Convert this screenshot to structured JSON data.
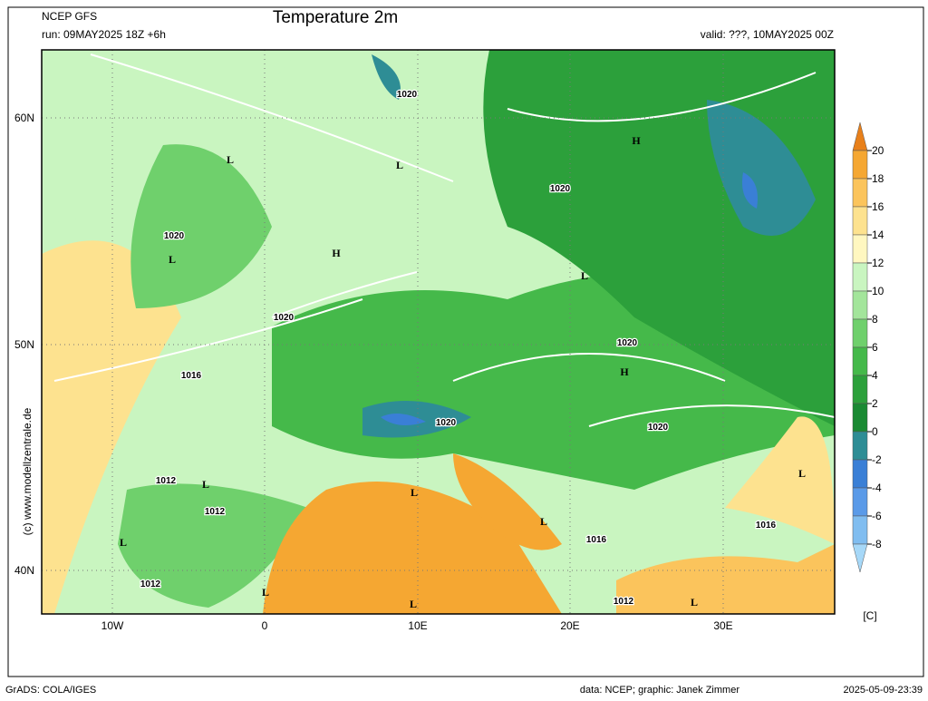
{
  "header": {
    "model": "NCEP GFS",
    "run": "run: 09MAY2025 18Z +6h",
    "title": "Temperature 2m",
    "valid": "valid: ???, 10MAY2025 00Z"
  },
  "axes": {
    "lat_labels": [
      "60N",
      "50N",
      "40N"
    ],
    "lon_labels": [
      "10W",
      "0",
      "10E",
      "20E",
      "30E"
    ]
  },
  "colorbar": {
    "labels": [
      20,
      18,
      16,
      14,
      12,
      10,
      8,
      6,
      4,
      2,
      0,
      -2,
      -4,
      -6,
      -8
    ],
    "unit": "[C]",
    "colors": [
      "#e8801a",
      "#f5a732",
      "#fbc45c",
      "#fde28f",
      "#fff7c0",
      "#c9f5c0",
      "#a3e59b",
      "#6fd06c",
      "#45b94a",
      "#2ca03b",
      "#1a8a33",
      "#2e8d95",
      "#3a7fd6",
      "#5a9ae8",
      "#80bdf0",
      "#a6d8f8"
    ]
  },
  "side": "(c) www.modellzentrale.de",
  "map_labels": [
    "L",
    "L",
    "H",
    "1020",
    "1020",
    "1020",
    "L",
    "H",
    "L",
    "1020",
    "1020",
    "H",
    "1016",
    "1020",
    "1020",
    "1012",
    "L",
    "1012",
    "L",
    "L",
    "L",
    "1016",
    "L",
    "1016",
    "1012",
    "L",
    "L",
    "1012",
    "L"
  ],
  "footer": {
    "left": "GrADS: COLA/IGES",
    "credit": "data: NCEP; graphic: Janek Zimmer",
    "timestamp": "2025-05-09-23:39"
  }
}
